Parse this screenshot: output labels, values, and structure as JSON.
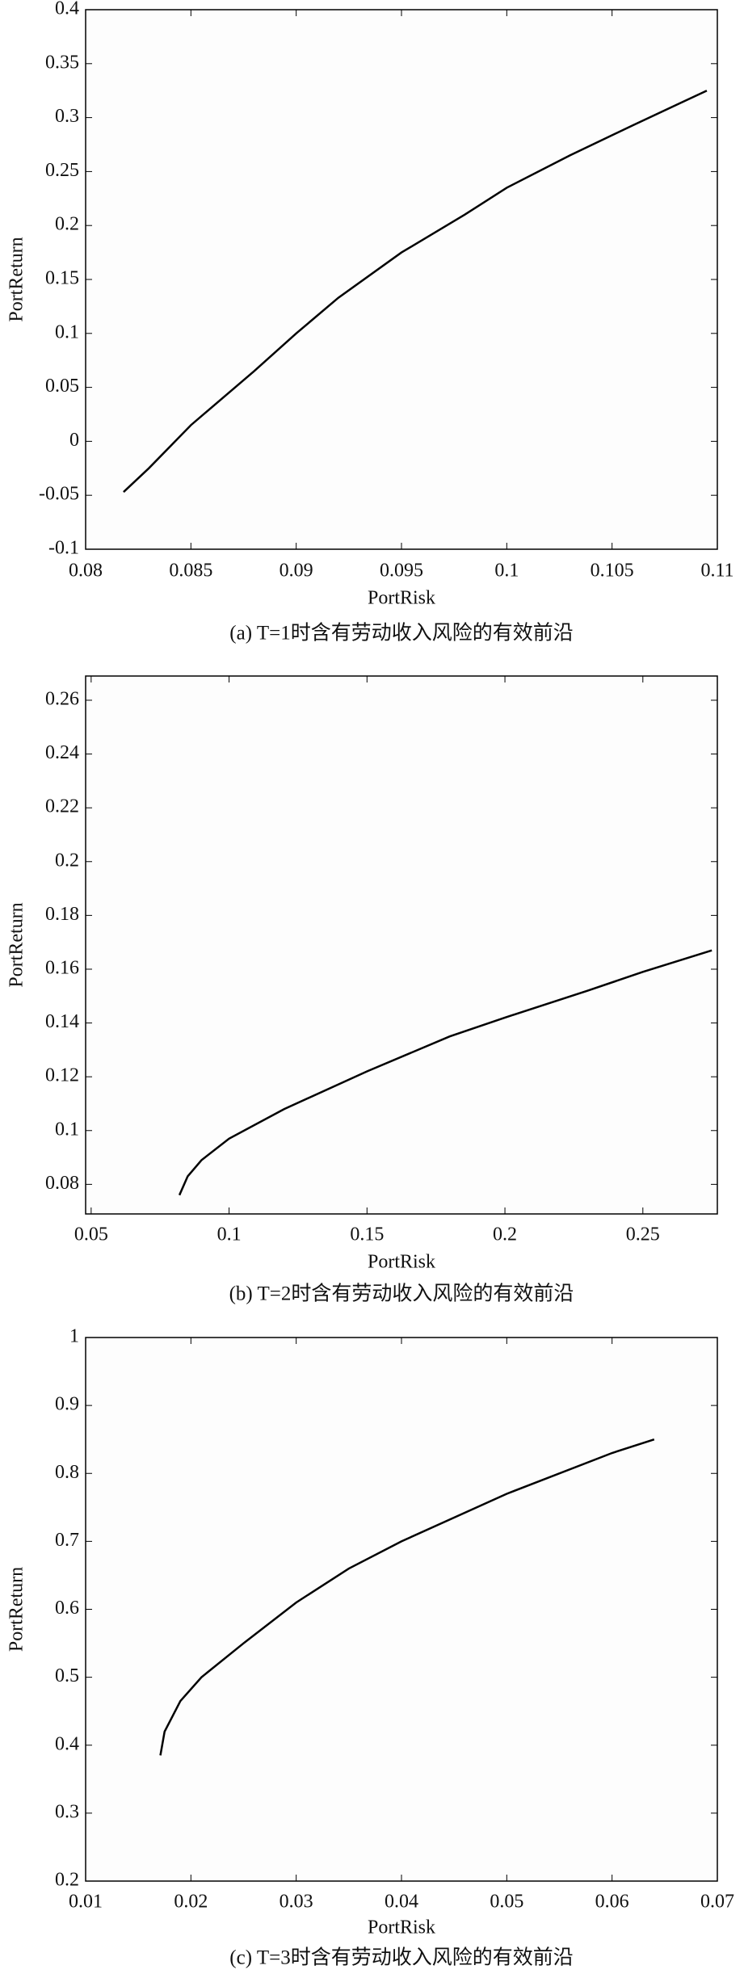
{
  "chart_data": [
    {
      "type": "line",
      "caption": "(a) T=1时含有劳动收入风险的有效前沿",
      "x_label": "PortRisk",
      "y_label": "PortReturn",
      "color": "#000000",
      "x": [
        0.0818,
        0.083,
        0.085,
        0.088,
        0.09,
        0.092,
        0.095,
        0.098,
        0.1,
        0.103,
        0.106,
        0.1095
      ],
      "values": [
        -0.047,
        -0.025,
        0.015,
        0.065,
        0.1,
        0.133,
        0.175,
        0.21,
        0.235,
        0.265,
        0.293,
        0.325
      ],
      "xlim": [
        0.08,
        0.11
      ],
      "xticks": [
        0.08,
        0.085,
        0.09,
        0.095,
        0.1,
        0.105,
        0.11
      ],
      "ylim": [
        -0.1,
        0.4
      ],
      "yticks": [
        -0.1,
        -0.05,
        0,
        0.05,
        0.1,
        0.15,
        0.2,
        0.25,
        0.3,
        0.35,
        0.4
      ]
    },
    {
      "type": "line",
      "caption": "(b) T=2时含有劳动收入风险的有效前沿",
      "x_label": "PortRisk",
      "y_label": "PortReturn",
      "color": "#000000",
      "x": [
        0.082,
        0.085,
        0.09,
        0.1,
        0.12,
        0.15,
        0.18,
        0.2,
        0.23,
        0.25,
        0.275
      ],
      "values": [
        0.076,
        0.083,
        0.089,
        0.097,
        0.108,
        0.122,
        0.135,
        0.142,
        0.152,
        0.159,
        0.167
      ],
      "xlim": [
        0.048,
        0.277
      ],
      "xticks": [
        0.05,
        0.1,
        0.15,
        0.2,
        0.25
      ],
      "ylim": [
        0.069,
        0.269
      ],
      "yticks": [
        0.08,
        0.1,
        0.12,
        0.14,
        0.16,
        0.18,
        0.2,
        0.22,
        0.24,
        0.26
      ]
    },
    {
      "type": "line",
      "caption": "(c) T=3时含有劳动收入风险的有效前沿",
      "x_label": "PortRisk",
      "y_label": "PortReturn",
      "color": "#000000",
      "x": [
        0.0171,
        0.0175,
        0.019,
        0.021,
        0.025,
        0.03,
        0.035,
        0.04,
        0.05,
        0.06,
        0.064
      ],
      "values": [
        0.385,
        0.42,
        0.465,
        0.5,
        0.55,
        0.61,
        0.66,
        0.7,
        0.77,
        0.83,
        0.85
      ],
      "xlim": [
        0.01,
        0.07
      ],
      "xticks": [
        0.01,
        0.02,
        0.03,
        0.04,
        0.05,
        0.06,
        0.07
      ],
      "ylim": [
        0.2,
        1
      ],
      "yticks": [
        0.2,
        0.3,
        0.4,
        0.5,
        0.6,
        0.7,
        0.8,
        0.9,
        1
      ]
    }
  ]
}
